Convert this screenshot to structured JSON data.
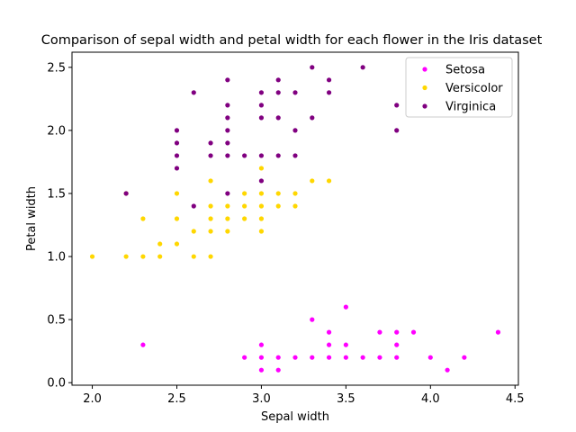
{
  "chart_data": {
    "type": "scatter",
    "title": "Comparison of sepal width and petal width for each flower in the Iris dataset",
    "xlabel": "Sepal width",
    "ylabel": "Petal width",
    "xlim": [
      1.88,
      4.52
    ],
    "ylim": [
      -0.02,
      2.62
    ],
    "xticks": [
      "2.0",
      "2.5",
      "3.0",
      "3.5",
      "4.0",
      "4.5"
    ],
    "yticks": [
      "0.0",
      "0.5",
      "1.0",
      "1.5",
      "2.0",
      "2.5"
    ],
    "grid": false,
    "legend_position": "top-right",
    "series": [
      {
        "name": "Setosa",
        "color": "#ff00ff",
        "points": [
          [
            2.3,
            0.3
          ],
          [
            2.9,
            0.2
          ],
          [
            3.0,
            0.1
          ],
          [
            3.0,
            0.2
          ],
          [
            3.0,
            0.3
          ],
          [
            3.1,
            0.1
          ],
          [
            3.1,
            0.2
          ],
          [
            3.2,
            0.2
          ],
          [
            3.3,
            0.2
          ],
          [
            3.3,
            0.5
          ],
          [
            3.4,
            0.2
          ],
          [
            3.4,
            0.3
          ],
          [
            3.4,
            0.4
          ],
          [
            3.5,
            0.2
          ],
          [
            3.5,
            0.3
          ],
          [
            3.5,
            0.6
          ],
          [
            3.6,
            0.2
          ],
          [
            3.7,
            0.2
          ],
          [
            3.7,
            0.4
          ],
          [
            3.8,
            0.2
          ],
          [
            3.8,
            0.3
          ],
          [
            3.8,
            0.4
          ],
          [
            3.9,
            0.4
          ],
          [
            4.0,
            0.2
          ],
          [
            4.1,
            0.1
          ],
          [
            4.2,
            0.2
          ],
          [
            4.4,
            0.4
          ]
        ]
      },
      {
        "name": "Versicolor",
        "color": "#ffd700",
        "points": [
          [
            2.0,
            1.0
          ],
          [
            2.2,
            1.0
          ],
          [
            2.2,
            1.5
          ],
          [
            2.3,
            1.0
          ],
          [
            2.3,
            1.3
          ],
          [
            2.4,
            1.0
          ],
          [
            2.4,
            1.1
          ],
          [
            2.5,
            1.1
          ],
          [
            2.5,
            1.3
          ],
          [
            2.5,
            1.5
          ],
          [
            2.6,
            1.0
          ],
          [
            2.6,
            1.2
          ],
          [
            2.7,
            1.0
          ],
          [
            2.7,
            1.2
          ],
          [
            2.7,
            1.3
          ],
          [
            2.7,
            1.4
          ],
          [
            2.7,
            1.6
          ],
          [
            2.8,
            1.2
          ],
          [
            2.8,
            1.3
          ],
          [
            2.8,
            1.4
          ],
          [
            2.9,
            1.3
          ],
          [
            2.9,
            1.4
          ],
          [
            2.9,
            1.5
          ],
          [
            3.0,
            1.2
          ],
          [
            3.0,
            1.3
          ],
          [
            3.0,
            1.4
          ],
          [
            3.0,
            1.5
          ],
          [
            3.0,
            1.7
          ],
          [
            3.1,
            1.4
          ],
          [
            3.1,
            1.5
          ],
          [
            3.2,
            1.4
          ],
          [
            3.2,
            1.5
          ],
          [
            3.3,
            1.6
          ],
          [
            3.4,
            1.6
          ]
        ]
      },
      {
        "name": "Virginica",
        "color": "#800080",
        "points": [
          [
            2.2,
            1.5
          ],
          [
            2.5,
            1.7
          ],
          [
            2.5,
            1.8
          ],
          [
            2.5,
            1.9
          ],
          [
            2.5,
            2.0
          ],
          [
            2.6,
            1.4
          ],
          [
            2.6,
            2.3
          ],
          [
            2.7,
            1.8
          ],
          [
            2.7,
            1.9
          ],
          [
            2.8,
            1.5
          ],
          [
            2.8,
            1.8
          ],
          [
            2.8,
            1.9
          ],
          [
            2.8,
            2.0
          ],
          [
            2.8,
            2.1
          ],
          [
            2.8,
            2.2
          ],
          [
            2.8,
            2.4
          ],
          [
            2.9,
            1.8
          ],
          [
            3.0,
            1.6
          ],
          [
            3.0,
            1.8
          ],
          [
            3.0,
            2.1
          ],
          [
            3.0,
            2.2
          ],
          [
            3.0,
            2.3
          ],
          [
            3.1,
            1.8
          ],
          [
            3.1,
            2.1
          ],
          [
            3.1,
            2.3
          ],
          [
            3.1,
            2.4
          ],
          [
            3.2,
            1.8
          ],
          [
            3.2,
            2.0
          ],
          [
            3.2,
            2.3
          ],
          [
            3.3,
            2.1
          ],
          [
            3.3,
            2.5
          ],
          [
            3.4,
            2.3
          ],
          [
            3.4,
            2.4
          ],
          [
            3.6,
            2.5
          ],
          [
            3.8,
            2.0
          ],
          [
            3.8,
            2.2
          ]
        ]
      }
    ]
  }
}
